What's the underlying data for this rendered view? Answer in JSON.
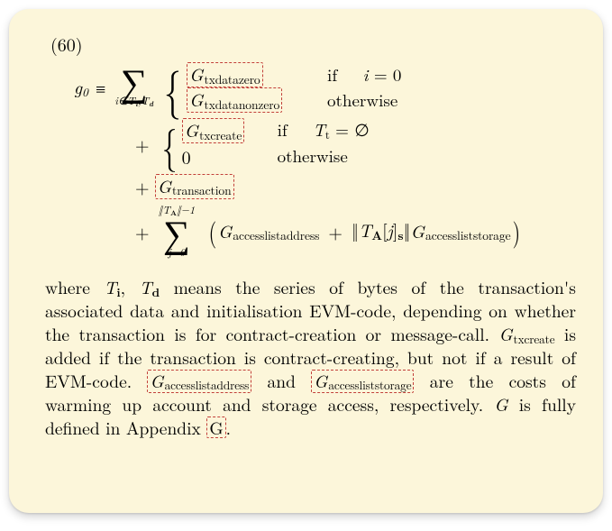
{
  "colors": {
    "background": "#fcf6da",
    "text": "#000000",
    "dashed_border": "#c2403a"
  },
  "equation_number": "(60)",
  "lhs": {
    "symbol": "g",
    "subscript": "0"
  },
  "equiv_symbol": "≡",
  "line1": {
    "sum_lower_raw": "i ∈ T_i, T_d",
    "case1": {
      "G_sub": "txdatazero",
      "cond_prefix": "if",
      "cond_var_raw": "i = 0"
    },
    "case2": {
      "G_sub": "txdatanonzero",
      "cond": "otherwise"
    }
  },
  "line2": {
    "case1": {
      "G_sub": "txcreate",
      "cond_prefix": "if",
      "cond_var_raw": "T_t = ∅"
    },
    "case2": {
      "val": "0",
      "cond": "otherwise"
    }
  },
  "line3": {
    "G_sub": "transaction"
  },
  "line4": {
    "sum_upper_raw": "‖T_A‖−1",
    "sum_lower": "j=0",
    "term1_sub": "accesslistaddress",
    "mid_raw": "‖T_A[j]_s‖",
    "term2_sub": "accessliststorage"
  },
  "paragraph": {
    "p1": "where ",
    "Ti_Td_raw": "T_i, T_d",
    "p2": " means the series of bytes of the transaction's associated data and initialisation EVM-code, depending on whether the transaction is for contract-creation or message-call. ",
    "Gtxcreate_sub": "txcreate",
    "p3": " is added if the transaction is contract-creating, but not if a result of EVM-code. ",
    "Gala_sub": "accesslistaddress",
    "p4": " and ",
    "Gals_sub": "accessliststorage",
    "p5": " are the costs of warming up account and storage access, respectively. ",
    "G_lone": "G",
    "p6": " is fully defined in Appendix ",
    "appendix": "G",
    "p7": "."
  }
}
